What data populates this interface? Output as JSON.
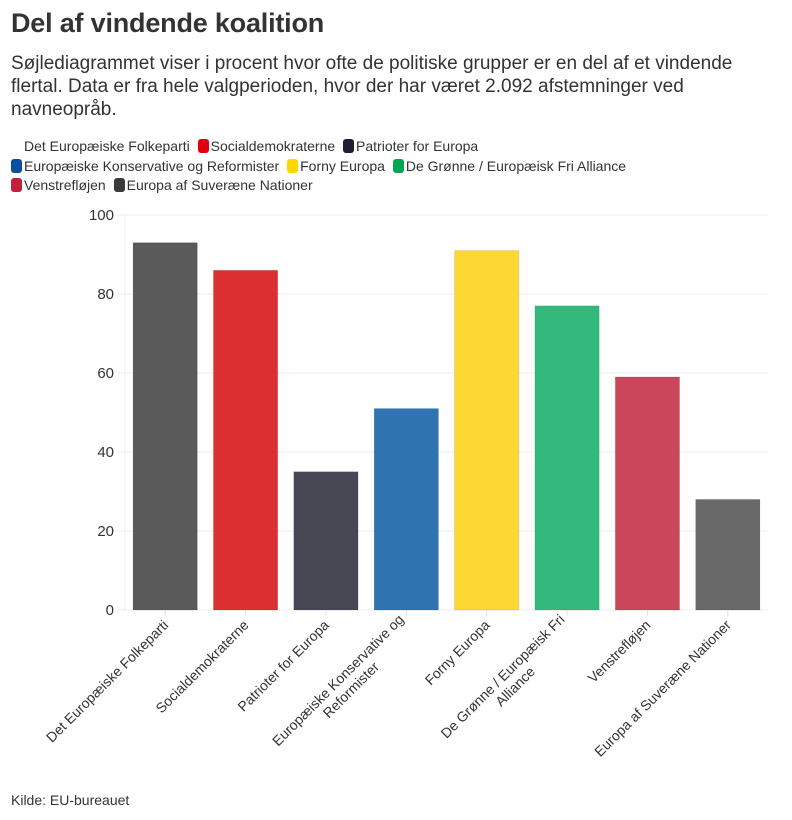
{
  "header": {
    "title": "Del af vindende koalition",
    "subtitle": "Søjlediagrammet viser i procent hvor ofte de politiske grupper er en del af et vindende flertal. Data er fra hele valgperioden, hvor der har været 2.092 afstemninger ved navneopråb."
  },
  "legend": {
    "items": [
      {
        "label": "Det Europæiske Folkeparti",
        "color": "transparent"
      },
      {
        "label": "Socialdemokraterne",
        "color": "#e1000f"
      },
      {
        "label": "Patrioter for Europa",
        "color": "#1f1e33"
      },
      {
        "label": "Europæiske Konservative og Reformister",
        "color": "#0a4f9e"
      },
      {
        "label": "Forny Europa",
        "color": "#ffd700"
      },
      {
        "label": "De Grønne / Europæisk Fri Alliance",
        "color": "#00a651"
      },
      {
        "label": "Venstrefløjen",
        "color": "#c41e3a"
      },
      {
        "label": "Europa af Suveræne Nationer",
        "color": "#3a3a3a"
      }
    ]
  },
  "footer": {
    "source": "Kilde: EU-bureauet"
  },
  "chart_data": {
    "type": "bar",
    "title": "Del af vindende koalition",
    "xlabel": "",
    "ylabel": "",
    "ylim": [
      0,
      100
    ],
    "yticks": [
      0,
      20,
      40,
      60,
      80,
      100
    ],
    "grid": true,
    "legend_position": "top-left",
    "categories": [
      [
        "Det Europæiske Folkeparti"
      ],
      [
        "Socialdemokraterne"
      ],
      [
        "Patrioter for Europa"
      ],
      [
        "Europæiske Konservative og",
        "Reformister"
      ],
      [
        "Forny Europa"
      ],
      [
        "De Grønne / Europæisk Fri",
        "Alliance"
      ],
      [
        "Venstrefløjen"
      ],
      [
        "Europa af Suveræne Nationer"
      ]
    ],
    "values": [
      93,
      86,
      35,
      51,
      91,
      77,
      59,
      28
    ],
    "colors": [
      "#5a5a5a",
      "#dc2f2f",
      "#484754",
      "#2f74b1",
      "#fdd835",
      "#33b97b",
      "#c9465b",
      "#696969"
    ]
  }
}
